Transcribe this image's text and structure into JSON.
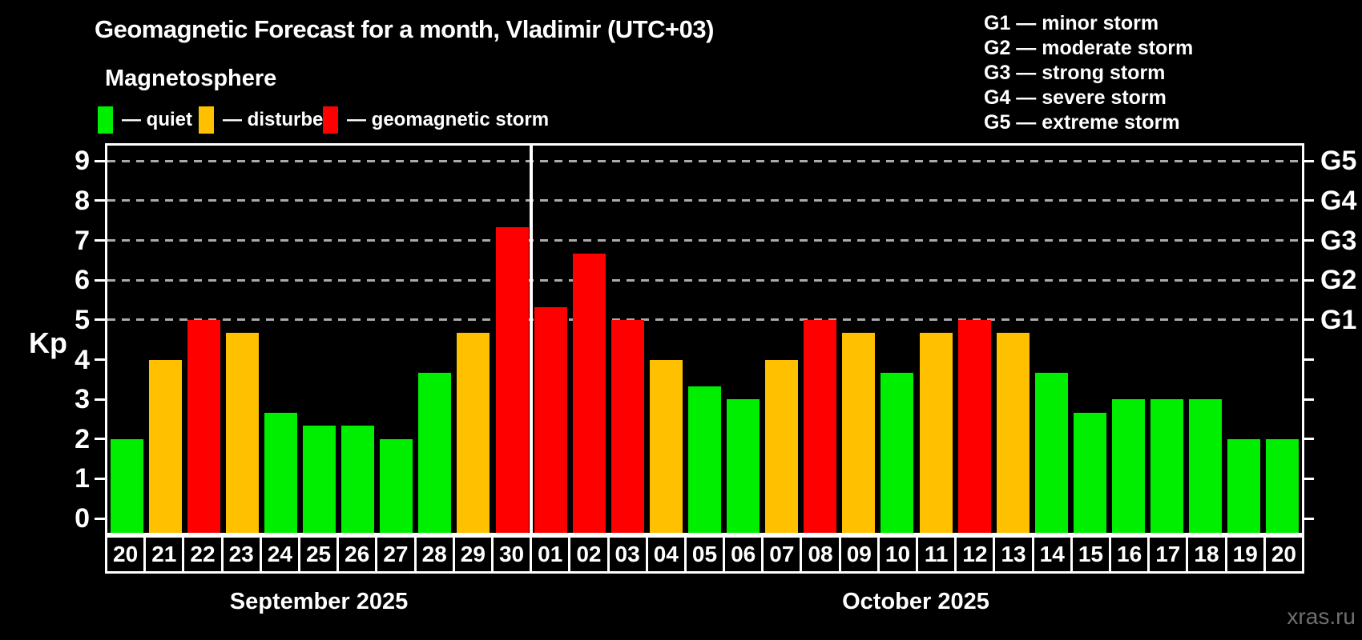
{
  "header": {
    "title": "Geomagnetic Forecast for a month, Vladimir (UTC+03)",
    "subtitle": "Magnetosphere"
  },
  "legend": [
    {
      "label": "— quiet",
      "status": "quiet",
      "color": "#00ee00"
    },
    {
      "label": "— disturbed",
      "status": "disturbed",
      "color": "#ffc000"
    },
    {
      "label": "— geomagnetic storm",
      "status": "storm",
      "color": "#ff0000"
    }
  ],
  "g_legend": [
    "G1 — minor storm",
    "G2 — moderate storm",
    "G3 — strong storm",
    "G4 — severe storm",
    "G5 — extreme storm"
  ],
  "watermark": "xras.ru",
  "chart_data": {
    "type": "bar",
    "title": "Geomagnetic Forecast for a month, Vladimir (UTC+03)",
    "subtitle": "Magnetosphere",
    "ylabel": "Kp",
    "ylim": [
      0,
      9
    ],
    "y_ticks": [
      "0",
      "1",
      "2",
      "3",
      "4",
      "5",
      "6",
      "7",
      "8",
      "9"
    ],
    "gridlines_at": [
      5,
      6,
      7,
      8,
      9
    ],
    "grid": "dashed horizontal at Kp 5-9 only",
    "right_axis_labels": [
      {
        "kp": 5,
        "label": "G1"
      },
      {
        "kp": 6,
        "label": "G2"
      },
      {
        "kp": 7,
        "label": "G3"
      },
      {
        "kp": 8,
        "label": "G4"
      },
      {
        "kp": 9,
        "label": "G5"
      }
    ],
    "colors": {
      "quiet": "#00ee00",
      "disturbed": "#ffc000",
      "storm": "#ff0000",
      "gridline": "#aaaaaa"
    },
    "months": [
      {
        "label": "September 2025",
        "start_index": 0,
        "count": 11
      },
      {
        "label": "October 2025",
        "start_index": 11,
        "count": 20
      }
    ],
    "bars": [
      {
        "day": "20",
        "kp": 2.0,
        "status": "quiet"
      },
      {
        "day": "21",
        "kp": 4.0,
        "status": "disturbed"
      },
      {
        "day": "22",
        "kp": 5.0,
        "status": "storm"
      },
      {
        "day": "23",
        "kp": 4.67,
        "status": "disturbed"
      },
      {
        "day": "24",
        "kp": 2.67,
        "status": "quiet"
      },
      {
        "day": "25",
        "kp": 2.33,
        "status": "quiet"
      },
      {
        "day": "26",
        "kp": 2.33,
        "status": "quiet"
      },
      {
        "day": "27",
        "kp": 2.0,
        "status": "quiet"
      },
      {
        "day": "28",
        "kp": 3.67,
        "status": "quiet"
      },
      {
        "day": "29",
        "kp": 4.67,
        "status": "disturbed"
      },
      {
        "day": "30",
        "kp": 7.33,
        "status": "storm"
      },
      {
        "day": "01",
        "kp": 5.33,
        "status": "storm"
      },
      {
        "day": "02",
        "kp": 6.67,
        "status": "storm"
      },
      {
        "day": "03",
        "kp": 5.0,
        "status": "storm"
      },
      {
        "day": "04",
        "kp": 4.0,
        "status": "disturbed"
      },
      {
        "day": "05",
        "kp": 3.33,
        "status": "quiet"
      },
      {
        "day": "06",
        "kp": 3.0,
        "status": "quiet"
      },
      {
        "day": "07",
        "kp": 4.0,
        "status": "disturbed"
      },
      {
        "day": "08",
        "kp": 5.0,
        "status": "storm"
      },
      {
        "day": "09",
        "kp": 4.67,
        "status": "disturbed"
      },
      {
        "day": "10",
        "kp": 3.67,
        "status": "quiet"
      },
      {
        "day": "11",
        "kp": 4.67,
        "status": "disturbed"
      },
      {
        "day": "12",
        "kp": 5.0,
        "status": "storm"
      },
      {
        "day": "13",
        "kp": 4.67,
        "status": "disturbed"
      },
      {
        "day": "14",
        "kp": 3.67,
        "status": "quiet"
      },
      {
        "day": "15",
        "kp": 2.67,
        "status": "quiet"
      },
      {
        "day": "16",
        "kp": 3.0,
        "status": "quiet"
      },
      {
        "day": "17",
        "kp": 3.0,
        "status": "quiet"
      },
      {
        "day": "18",
        "kp": 3.0,
        "status": "quiet"
      },
      {
        "day": "19",
        "kp": 2.0,
        "status": "quiet"
      },
      {
        "day": "20",
        "kp": 2.0,
        "status": "quiet"
      }
    ]
  }
}
